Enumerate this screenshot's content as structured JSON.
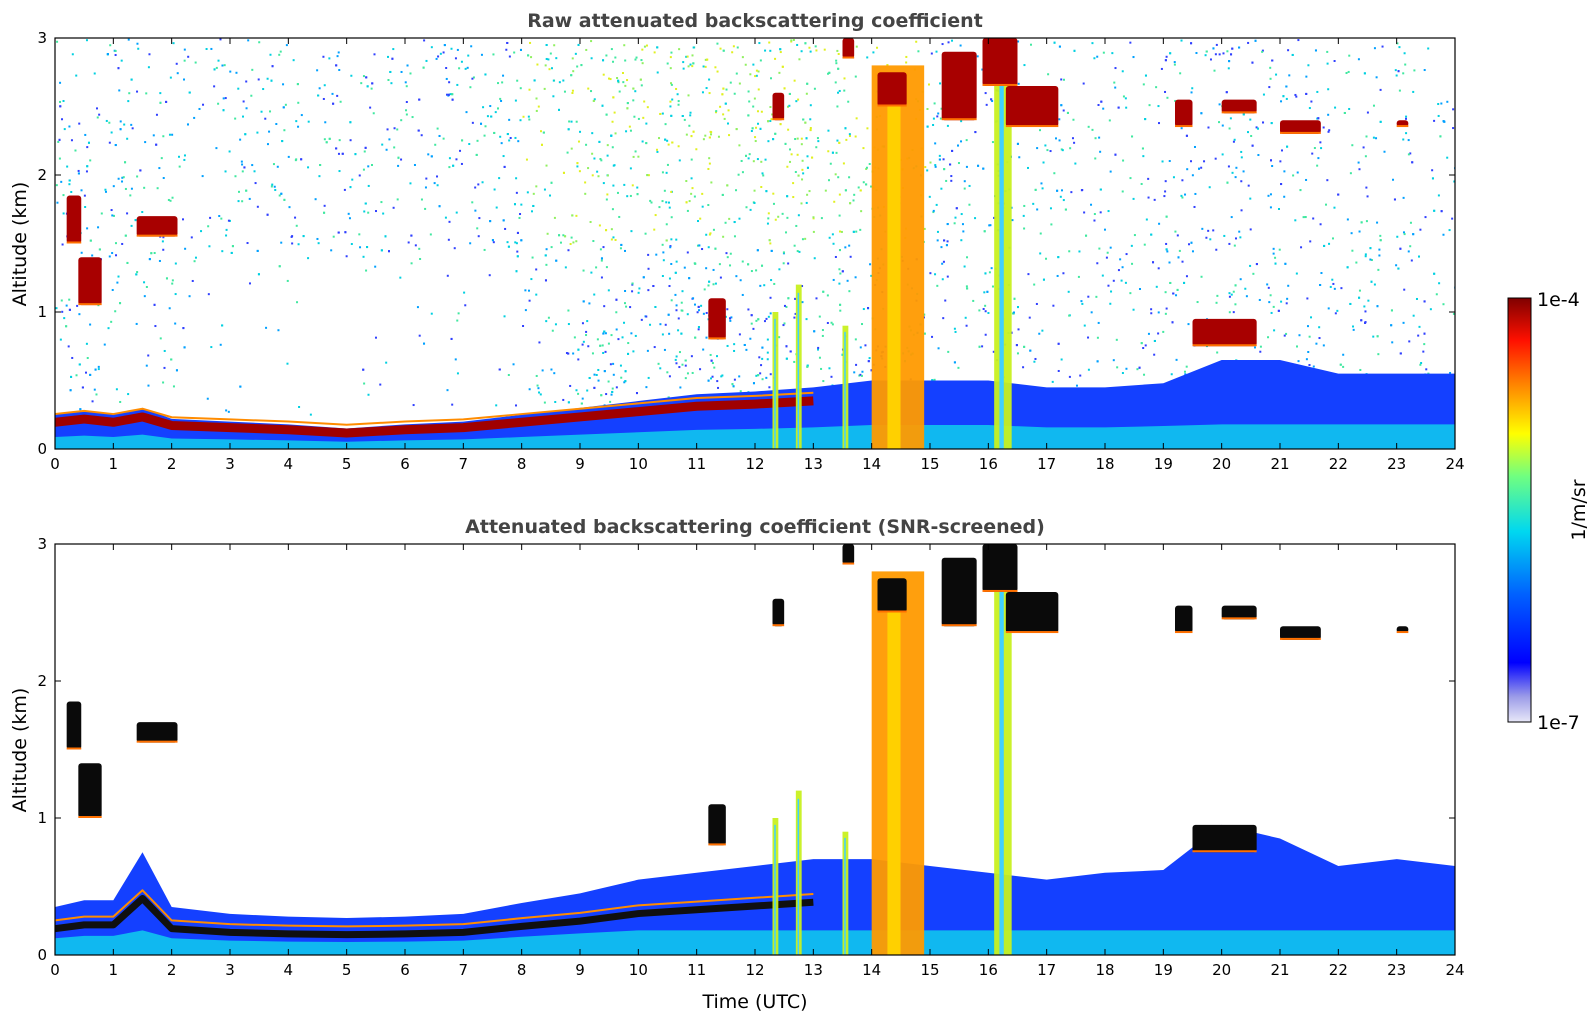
{
  "chart_data": [
    {
      "type": "heatmap",
      "title": "Raw attenuated backscattering coefficient",
      "xlabel": "",
      "ylabel": "Altitude (km)",
      "xlim": [
        0,
        24
      ],
      "ylim": [
        0,
        3
      ],
      "x_ticks": [
        "0",
        "1",
        "2",
        "3",
        "4",
        "5",
        "6",
        "7",
        "8",
        "9",
        "10",
        "11",
        "12",
        "13",
        "14",
        "15",
        "16",
        "17",
        "18",
        "19",
        "20",
        "21",
        "22",
        "23",
        "24"
      ],
      "y_ticks": [
        "0",
        "1",
        "2",
        "3"
      ],
      "background_noise": "speckled noise increasing with altitude, strongest 9-14 UTC",
      "boundary_layer_top_km": [
        {
          "x": 0,
          "y": 0.25
        },
        {
          "x": 0.5,
          "y": 0.28
        },
        {
          "x": 1.0,
          "y": 0.25
        },
        {
          "x": 1.5,
          "y": 0.3
        },
        {
          "x": 2.0,
          "y": 0.22
        },
        {
          "x": 3,
          "y": 0.2
        },
        {
          "x": 4,
          "y": 0.18
        },
        {
          "x": 5,
          "y": 0.15
        },
        {
          "x": 6,
          "y": 0.18
        },
        {
          "x": 7,
          "y": 0.2
        },
        {
          "x": 8,
          "y": 0.25
        },
        {
          "x": 9,
          "y": 0.3
        },
        {
          "x": 10,
          "y": 0.35
        },
        {
          "x": 11,
          "y": 0.4
        },
        {
          "x": 12,
          "y": 0.42
        },
        {
          "x": 13,
          "y": 0.45
        },
        {
          "x": 14,
          "y": 0.5
        },
        {
          "x": 15,
          "y": 0.5
        },
        {
          "x": 16,
          "y": 0.5
        },
        {
          "x": 17,
          "y": 0.45
        },
        {
          "x": 18,
          "y": 0.45
        },
        {
          "x": 19,
          "y": 0.48
        },
        {
          "x": 20,
          "y": 0.65
        },
        {
          "x": 21,
          "y": 0.65
        },
        {
          "x": 22,
          "y": 0.55
        },
        {
          "x": 23,
          "y": 0.55
        },
        {
          "x": 24,
          "y": 0.55
        }
      ],
      "cloud_features": [
        {
          "t0": 0.2,
          "t1": 0.45,
          "h0": 1.5,
          "h1": 1.85
        },
        {
          "t0": 0.4,
          "t1": 0.8,
          "h0": 1.05,
          "h1": 1.4
        },
        {
          "t0": 1.4,
          "t1": 2.1,
          "h0": 1.55,
          "h1": 1.7
        },
        {
          "t0": 11.2,
          "t1": 11.5,
          "h0": 0.8,
          "h1": 1.1
        },
        {
          "t0": 12.3,
          "t1": 12.5,
          "h0": 2.4,
          "h1": 2.6
        },
        {
          "t0": 13.5,
          "t1": 13.7,
          "h0": 2.85,
          "h1": 3.0
        },
        {
          "t0": 14.1,
          "t1": 14.6,
          "h0": 2.5,
          "h1": 2.75
        },
        {
          "t0": 15.2,
          "t1": 15.8,
          "h0": 2.4,
          "h1": 2.9
        },
        {
          "t0": 15.9,
          "t1": 16.5,
          "h0": 2.65,
          "h1": 3.0
        },
        {
          "t0": 16.3,
          "t1": 17.2,
          "h0": 2.35,
          "h1": 2.65
        },
        {
          "t0": 19.2,
          "t1": 19.5,
          "h0": 2.35,
          "h1": 2.55
        },
        {
          "t0": 20.0,
          "t1": 20.6,
          "h0": 2.45,
          "h1": 2.55
        },
        {
          "t0": 21.0,
          "t1": 21.7,
          "h0": 2.3,
          "h1": 2.4
        },
        {
          "t0": 19.5,
          "t1": 20.6,
          "h0": 0.75,
          "h1": 0.95
        },
        {
          "t0": 23.0,
          "t1": 23.2,
          "h0": 2.35,
          "h1": 2.4
        }
      ],
      "precipitation_columns": [
        {
          "t0": 12.3,
          "t1": 12.4,
          "h_top": 1.0
        },
        {
          "t0": 12.7,
          "t1": 12.8,
          "h_top": 1.2
        },
        {
          "t0": 13.5,
          "t1": 13.6,
          "h_top": 0.9
        },
        {
          "t0": 14.0,
          "t1": 14.9,
          "h_top": 2.8
        },
        {
          "t0": 16.1,
          "t1": 16.4,
          "h_top": 3.0
        }
      ]
    },
    {
      "type": "heatmap",
      "title": "Attenuated backscattering coefficient (SNR-screened)",
      "xlabel": "Time (UTC)",
      "ylabel": "Altitude (km)",
      "xlim": [
        0,
        24
      ],
      "ylim": [
        0,
        3
      ],
      "x_ticks": [
        "0",
        "1",
        "2",
        "3",
        "4",
        "5",
        "6",
        "7",
        "8",
        "9",
        "10",
        "11",
        "12",
        "13",
        "14",
        "15",
        "16",
        "17",
        "18",
        "19",
        "20",
        "21",
        "22",
        "23",
        "24"
      ],
      "y_ticks": [
        "0",
        "1",
        "2",
        "3"
      ],
      "background_noise": "none (screened out)",
      "boundary_layer_top_km": [
        {
          "x": 0,
          "y": 0.35
        },
        {
          "x": 0.5,
          "y": 0.4
        },
        {
          "x": 1.0,
          "y": 0.4
        },
        {
          "x": 1.5,
          "y": 0.75
        },
        {
          "x": 2.0,
          "y": 0.35
        },
        {
          "x": 3,
          "y": 0.3
        },
        {
          "x": 4,
          "y": 0.28
        },
        {
          "x": 5,
          "y": 0.27
        },
        {
          "x": 6,
          "y": 0.28
        },
        {
          "x": 7,
          "y": 0.3
        },
        {
          "x": 8,
          "y": 0.38
        },
        {
          "x": 9,
          "y": 0.45
        },
        {
          "x": 10,
          "y": 0.55
        },
        {
          "x": 11,
          "y": 0.6
        },
        {
          "x": 12,
          "y": 0.65
        },
        {
          "x": 13,
          "y": 0.7
        },
        {
          "x": 14,
          "y": 0.7
        },
        {
          "x": 15,
          "y": 0.65
        },
        {
          "x": 16,
          "y": 0.6
        },
        {
          "x": 17,
          "y": 0.55
        },
        {
          "x": 18,
          "y": 0.6
        },
        {
          "x": 19,
          "y": 0.62
        },
        {
          "x": 20,
          "y": 0.95
        },
        {
          "x": 21,
          "y": 0.85
        },
        {
          "x": 22,
          "y": 0.65
        },
        {
          "x": 23,
          "y": 0.7
        },
        {
          "x": 24,
          "y": 0.65
        }
      ],
      "cloud_features": [
        {
          "t0": 0.2,
          "t1": 0.45,
          "h0": 1.5,
          "h1": 1.85
        },
        {
          "t0": 0.4,
          "t1": 0.8,
          "h0": 1.0,
          "h1": 1.4
        },
        {
          "t0": 1.4,
          "t1": 2.1,
          "h0": 1.55,
          "h1": 1.7
        },
        {
          "t0": 11.2,
          "t1": 11.5,
          "h0": 0.8,
          "h1": 1.1
        },
        {
          "t0": 12.3,
          "t1": 12.5,
          "h0": 2.4,
          "h1": 2.6
        },
        {
          "t0": 13.5,
          "t1": 13.7,
          "h0": 2.85,
          "h1": 3.0
        },
        {
          "t0": 14.1,
          "t1": 14.6,
          "h0": 2.5,
          "h1": 2.75
        },
        {
          "t0": 15.2,
          "t1": 15.8,
          "h0": 2.4,
          "h1": 2.9
        },
        {
          "t0": 15.9,
          "t1": 16.5,
          "h0": 2.65,
          "h1": 3.0
        },
        {
          "t0": 16.3,
          "t1": 17.2,
          "h0": 2.35,
          "h1": 2.65
        },
        {
          "t0": 19.2,
          "t1": 19.5,
          "h0": 2.35,
          "h1": 2.55
        },
        {
          "t0": 20.0,
          "t1": 20.6,
          "h0": 2.45,
          "h1": 2.55
        },
        {
          "t0": 21.0,
          "t1": 21.7,
          "h0": 2.3,
          "h1": 2.4
        },
        {
          "t0": 19.5,
          "t1": 20.6,
          "h0": 0.75,
          "h1": 0.95
        },
        {
          "t0": 23.0,
          "t1": 23.2,
          "h0": 2.35,
          "h1": 2.4
        }
      ],
      "precipitation_columns": [
        {
          "t0": 12.3,
          "t1": 12.4,
          "h_top": 1.0
        },
        {
          "t0": 12.7,
          "t1": 12.8,
          "h_top": 1.2
        },
        {
          "t0": 13.5,
          "t1": 13.6,
          "h_top": 0.9
        },
        {
          "t0": 14.0,
          "t1": 14.9,
          "h_top": 2.8
        },
        {
          "t0": 16.1,
          "t1": 16.4,
          "h_top": 3.0
        }
      ]
    }
  ],
  "colorbar": {
    "label": "1/m/sr",
    "max_label": "1e-4",
    "min_label": "1e-7",
    "scale": "log",
    "colormap": "jet",
    "colors": [
      "#e6e6f5",
      "#9999e6",
      "#0000ff",
      "#0080ff",
      "#00e5e5",
      "#80ff80",
      "#ffff00",
      "#ff8000",
      "#ff0000",
      "#800000"
    ]
  }
}
